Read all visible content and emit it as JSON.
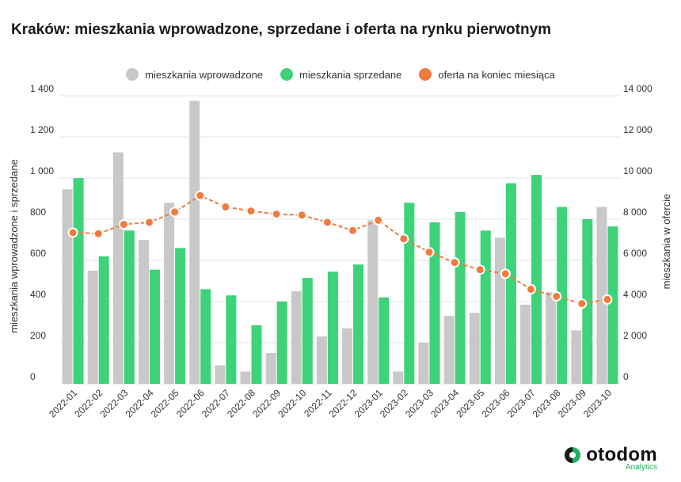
{
  "title": "Kraków: mieszkania wprowadzone, sprzedane i oferta na rynku pierwotnym",
  "legend": {
    "introduced": "mieszkania wprowadzone",
    "sold": "mieszkania sprzedane",
    "offer": "oferta na koniec miesiąca"
  },
  "colors": {
    "introduced": "#c8c8c8",
    "sold": "#3ed27a",
    "offer": "#f07b3f",
    "grid": "#e3e3e3",
    "brand_accent": "#20b061"
  },
  "brand": {
    "name": "otodom",
    "sub": "Analytics",
    "icon": "otodom-logo-icon"
  },
  "chart_data": {
    "type": "bar",
    "title": "Kraków: mieszkania wprowadzone, sprzedane i oferta na rynku pierwotnym",
    "ylabel": "mieszkania wprowadzone i sprzedane",
    "y2label": "mieszkania w ofercie",
    "ylim": [
      0,
      1400
    ],
    "y2lim": [
      0,
      14000
    ],
    "yticks": [
      "0",
      "200",
      "400",
      "600",
      "800",
      "1 000",
      "1 200",
      "1 400"
    ],
    "y2ticks": [
      "0",
      "2 000",
      "4 000",
      "6 000",
      "8 000",
      "10 000",
      "12 000",
      "14 000"
    ],
    "grid": true,
    "legend_position": "top",
    "categories": [
      "2022-01",
      "2022-02",
      "2022-03",
      "2022-04",
      "2022-05",
      "2022-06",
      "2022-07",
      "2022-08",
      "2022-09",
      "2022-10",
      "2022-11",
      "2022-12",
      "2023-01",
      "2023-02",
      "2023-03",
      "2023-04",
      "2023-05",
      "2023-06",
      "2023-07",
      "2023-08",
      "2023-09",
      "2023-10"
    ],
    "series": [
      {
        "name": "mieszkania wprowadzone",
        "type": "bar",
        "axis": "left",
        "values": [
          945,
          550,
          1125,
          700,
          880,
          1375,
          90,
          60,
          150,
          450,
          230,
          270,
          795,
          60,
          200,
          330,
          345,
          710,
          385,
          445,
          260,
          860
        ]
      },
      {
        "name": "mieszkania sprzedane",
        "type": "bar",
        "axis": "left",
        "values": [
          1000,
          620,
          745,
          555,
          660,
          460,
          430,
          285,
          400,
          515,
          545,
          580,
          420,
          880,
          785,
          835,
          745,
          975,
          1015,
          860,
          800,
          765
        ]
      },
      {
        "name": "oferta na koniec miesiąca",
        "type": "line",
        "axis": "right",
        "values": [
          7350,
          7300,
          7750,
          7850,
          8350,
          9150,
          8600,
          8400,
          8250,
          8200,
          7850,
          7450,
          7950,
          7050,
          6400,
          5900,
          5550,
          5350,
          4600,
          4250,
          3900,
          4100
        ]
      }
    ]
  }
}
